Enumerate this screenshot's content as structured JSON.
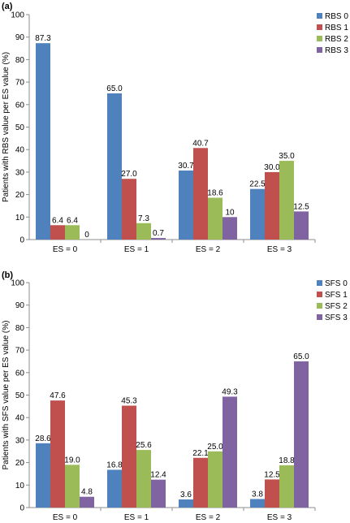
{
  "colors": {
    "series": [
      "#4f81bd",
      "#c0504d",
      "#9bbb59",
      "#8064a2"
    ],
    "axis": "#8c8c8c",
    "text": "#000000"
  },
  "chart_data": [
    {
      "type": "bar",
      "panel_label": "(a)",
      "categories": [
        "ES = 0",
        "ES = 1",
        "ES = 2",
        "ES = 3"
      ],
      "series": [
        {
          "name": "RBS 0",
          "values": [
            87.3,
            65.0,
            30.7,
            22.5
          ],
          "labels": [
            "87.3",
            "65.0",
            "30.7",
            "22.5"
          ]
        },
        {
          "name": "RBS 1",
          "values": [
            6.4,
            27.0,
            40.7,
            30.0
          ],
          "labels": [
            "6.4",
            "27.0",
            "40.7",
            "30.0"
          ]
        },
        {
          "name": "RBS 2",
          "values": [
            6.4,
            7.3,
            18.6,
            35.0
          ],
          "labels": [
            "6.4",
            "7.3",
            "18.6",
            "35.0"
          ]
        },
        {
          "name": "RBS 3",
          "values": [
            0,
            0.7,
            10,
            12.5
          ],
          "labels": [
            "0",
            "0.7",
            "10",
            "12.5"
          ]
        }
      ],
      "ylabel": "Patients with RBS value  per ES value (%)",
      "xlabel": "",
      "ylim": [
        0,
        100
      ],
      "yticks": [
        0,
        10,
        20,
        30,
        40,
        50,
        60,
        70,
        80,
        90,
        100
      ],
      "grid": false,
      "legend_position": "top-right"
    },
    {
      "type": "bar",
      "panel_label": "(b)",
      "categories": [
        "ES = 0",
        "ES = 1",
        "ES = 2",
        "ES = 3"
      ],
      "series": [
        {
          "name": "SFS 0",
          "values": [
            28.6,
            16.8,
            3.6,
            3.8
          ],
          "labels": [
            "28.6",
            "16.8",
            "3.6",
            "3.8"
          ]
        },
        {
          "name": "SFS 1",
          "values": [
            47.6,
            45.3,
            22.1,
            12.5
          ],
          "labels": [
            "47.6",
            "45.3",
            "22.1",
            "12.5"
          ]
        },
        {
          "name": "SFS 2",
          "values": [
            19.0,
            25.6,
            25.0,
            18.8
          ],
          "labels": [
            "19.0",
            "25.6",
            "25.0",
            "18.8"
          ]
        },
        {
          "name": "SFS 3",
          "values": [
            4.8,
            12.4,
            49.3,
            65.0
          ],
          "labels": [
            "4.8",
            "12.4",
            "49.3",
            "65.0"
          ]
        }
      ],
      "ylabel": "Patients with SFS value  per ES value (%)",
      "xlabel": "",
      "ylim": [
        0,
        100
      ],
      "yticks": [
        0,
        10,
        20,
        30,
        40,
        50,
        60,
        70,
        80,
        90,
        100
      ],
      "grid": false,
      "legend_position": "top-right"
    }
  ]
}
